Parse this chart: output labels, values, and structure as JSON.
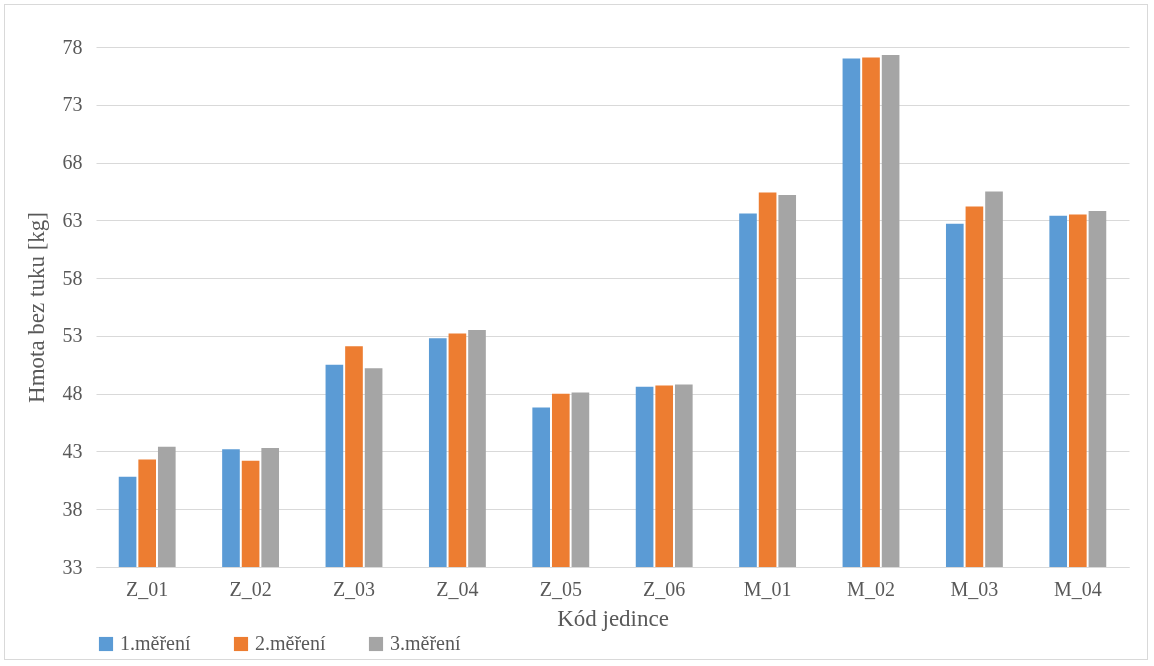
{
  "chart_data": {
    "type": "bar",
    "xlabel": "Kód jedince",
    "ylabel": "Hmota bez tuku [kg]",
    "categories": [
      "Z_01",
      "Z_02",
      "Z_03",
      "Z_04",
      "Z_05",
      "Z_06",
      "M_01",
      "M_02",
      "M_03",
      "M_04"
    ],
    "series": [
      {
        "name": "1.měření",
        "color": "#5b9bd5",
        "values": [
          40.8,
          43.2,
          50.5,
          52.8,
          46.8,
          48.6,
          63.6,
          77.0,
          62.7,
          63.4
        ]
      },
      {
        "name": "2.měření",
        "color": "#ed7d31",
        "values": [
          42.3,
          42.2,
          52.1,
          53.2,
          48.0,
          48.7,
          65.4,
          77.1,
          64.2,
          63.5
        ]
      },
      {
        "name": "3.měření",
        "color": "#a5a5a5",
        "values": [
          43.4,
          43.3,
          50.2,
          53.5,
          48.1,
          48.8,
          65.2,
          77.3,
          65.5,
          63.8
        ]
      }
    ],
    "ylim": [
      33,
      78
    ],
    "yticks": [
      33,
      38,
      43,
      48,
      53,
      58,
      63,
      68,
      73,
      78
    ],
    "grid": "y",
    "legend": "bottom"
  }
}
